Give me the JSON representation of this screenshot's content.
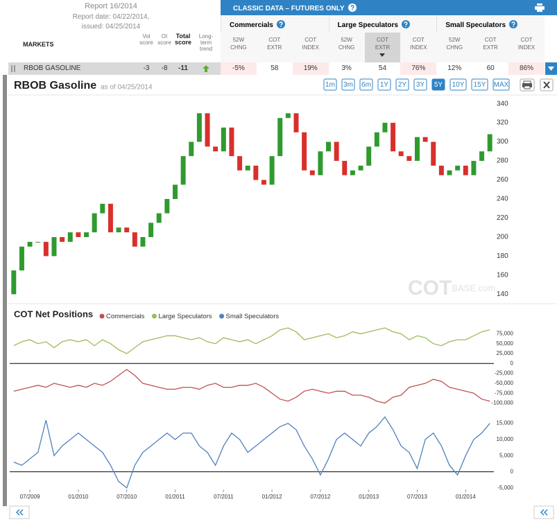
{
  "header": {
    "report": "Report 16/2014",
    "report_date": "Report date: 04/22/2014,",
    "issued": "issued: 04/25/2014",
    "markets_label": "MARKETS",
    "score_columns": [
      "Vol score",
      "OI score",
      "Total score",
      "Long-term trend"
    ],
    "banner": "CLASSIC DATA – FUTURES ONLY",
    "groups": [
      "Commercials",
      "Large Speculators",
      "Small Speculators"
    ],
    "group_columns": [
      "52W CHNG",
      "COT EXTR",
      "COT INDEX"
    ]
  },
  "row": {
    "market": "RBOB GASOLINE",
    "scores": [
      "-3",
      "-8",
      "-11"
    ],
    "cells": [
      "-5%",
      "58",
      "19%",
      "3%",
      "54",
      "76%",
      "12%",
      "60",
      "86%"
    ]
  },
  "panel": {
    "title": "RBOB Gasoline",
    "as_of": "as of 04/25/2014",
    "ranges": [
      "1m",
      "3m",
      "6m",
      "1Y",
      "2Y",
      "3Y",
      "5Y",
      "10Y",
      "15Y",
      "MAX"
    ],
    "active_range": "5Y",
    "watermark": [
      "COT",
      "BASE.com"
    ]
  },
  "chart_data": [
    {
      "type": "candlestick",
      "up_color": "#2f9a2f",
      "down_color": "#d8302b",
      "open": [
        140,
        165,
        190,
        195,
        195,
        180,
        200,
        195,
        205,
        200,
        205,
        225,
        235,
        205,
        210,
        205,
        190,
        200,
        215,
        225,
        240,
        255,
        285,
        300,
        330,
        295,
        290,
        315,
        285,
        270,
        275,
        260,
        255,
        285,
        325,
        330,
        310,
        270,
        265,
        290,
        300,
        280,
        265,
        270,
        275,
        295,
        310,
        320,
        290,
        285,
        280,
        305,
        300,
        275,
        265,
        270,
        275,
        265,
        280,
        290
      ],
      "close": [
        165,
        190,
        195,
        195,
        180,
        200,
        195,
        205,
        200,
        205,
        225,
        235,
        205,
        210,
        205,
        190,
        200,
        215,
        225,
        240,
        255,
        285,
        300,
        330,
        295,
        290,
        315,
        285,
        270,
        275,
        260,
        255,
        285,
        325,
        330,
        310,
        270,
        265,
        290,
        300,
        280,
        265,
        270,
        275,
        295,
        310,
        320,
        290,
        285,
        280,
        305,
        300,
        275,
        265,
        270,
        275,
        265,
        280,
        290,
        308
      ],
      "ylim": [
        133,
        347
      ],
      "yticks": [
        140,
        160,
        180,
        200,
        220,
        240,
        260,
        280,
        300,
        320,
        340
      ]
    },
    {
      "type": "line",
      "title": "COT Net Positions",
      "categories": [
        null,
        null,
        "07/2009",
        null,
        null,
        null,
        null,
        null,
        "01/2010",
        null,
        null,
        null,
        null,
        null,
        "07/2010",
        null,
        null,
        null,
        null,
        null,
        "01/2011",
        null,
        null,
        null,
        null,
        null,
        "07/2011",
        null,
        null,
        null,
        null,
        null,
        "01/2012",
        null,
        null,
        null,
        null,
        null,
        "07/2012",
        null,
        null,
        null,
        null,
        null,
        "01/2013",
        null,
        null,
        null,
        null,
        null,
        "07/2013",
        null,
        null,
        null,
        null,
        null,
        "01/2014",
        null,
        null,
        null
      ],
      "series": [
        {
          "name": "Commercials",
          "color": "#c0504d",
          "axis": "y",
          "values": [
            -70000,
            -65000,
            -60000,
            -55000,
            -60000,
            -50000,
            -55000,
            -60000,
            -55000,
            -60000,
            -50000,
            -55000,
            -45000,
            -30000,
            -15000,
            -30000,
            -50000,
            -55000,
            -60000,
            -65000,
            -65000,
            -60000,
            -60000,
            -65000,
            -55000,
            -50000,
            -60000,
            -60000,
            -55000,
            -55000,
            -50000,
            -60000,
            -75000,
            -90000,
            -95000,
            -85000,
            -70000,
            -65000,
            -70000,
            -75000,
            -70000,
            -70000,
            -80000,
            -80000,
            -85000,
            -95000,
            -100000,
            -85000,
            -80000,
            -60000,
            -55000,
            -50000,
            -40000,
            -45000,
            -60000,
            -65000,
            -70000,
            -75000,
            -90000,
            -95000
          ]
        },
        {
          "name": "Large Speculators",
          "color": "#9bbb59",
          "axis": "y",
          "values": [
            45000,
            55000,
            60000,
            50000,
            55000,
            40000,
            55000,
            60000,
            55000,
            60000,
            45000,
            60000,
            50000,
            35000,
            25000,
            40000,
            55000,
            60000,
            65000,
            70000,
            70000,
            65000,
            60000,
            65000,
            55000,
            50000,
            65000,
            60000,
            55000,
            60000,
            50000,
            60000,
            70000,
            85000,
            90000,
            80000,
            60000,
            65000,
            70000,
            75000,
            65000,
            70000,
            80000,
            75000,
            80000,
            85000,
            90000,
            80000,
            75000,
            60000,
            70000,
            65000,
            50000,
            45000,
            55000,
            60000,
            60000,
            70000,
            80000,
            85000
          ]
        },
        {
          "name": "Small Speculators",
          "color": "#4f81bd",
          "axis": "y2",
          "values": [
            3000,
            2000,
            4000,
            6000,
            16000,
            5000,
            8000,
            10000,
            12000,
            10000,
            8000,
            6000,
            2000,
            -3000,
            -5000,
            2000,
            6000,
            8000,
            10000,
            12000,
            10000,
            12000,
            12000,
            8000,
            6000,
            2000,
            8000,
            12000,
            10000,
            6000,
            8000,
            10000,
            12000,
            14000,
            15000,
            13000,
            8000,
            4000,
            -1000,
            4000,
            10000,
            12000,
            10000,
            8000,
            12000,
            14000,
            17000,
            13000,
            8000,
            6000,
            1000,
            10000,
            12000,
            8000,
            2000,
            -1000,
            5000,
            10000,
            12000,
            15000
          ]
        }
      ],
      "ylim": [
        -115000,
        95000
      ],
      "yticks": [
        {
          "value": 75000,
          "label": "75,000"
        },
        {
          "value": 50000,
          "label": "50,000"
        },
        {
          "value": 25000,
          "label": "25,000"
        },
        0,
        {
          "value": -25000,
          "label": "-25,000"
        },
        {
          "value": -50000,
          "label": "-50,000"
        },
        {
          "value": -75000,
          "label": "-75,000"
        },
        {
          "value": -100000,
          "label": "-100,000"
        }
      ],
      "y2lim": [
        -7000,
        19000
      ],
      "y2ticks": [
        {
          "value": 15000,
          "label": "15,000"
        },
        {
          "value": 10000,
          "label": "10,000"
        },
        {
          "value": 5000,
          "label": "5,000"
        },
        0,
        {
          "value": -5000,
          "label": "-5,000"
        }
      ]
    }
  ]
}
